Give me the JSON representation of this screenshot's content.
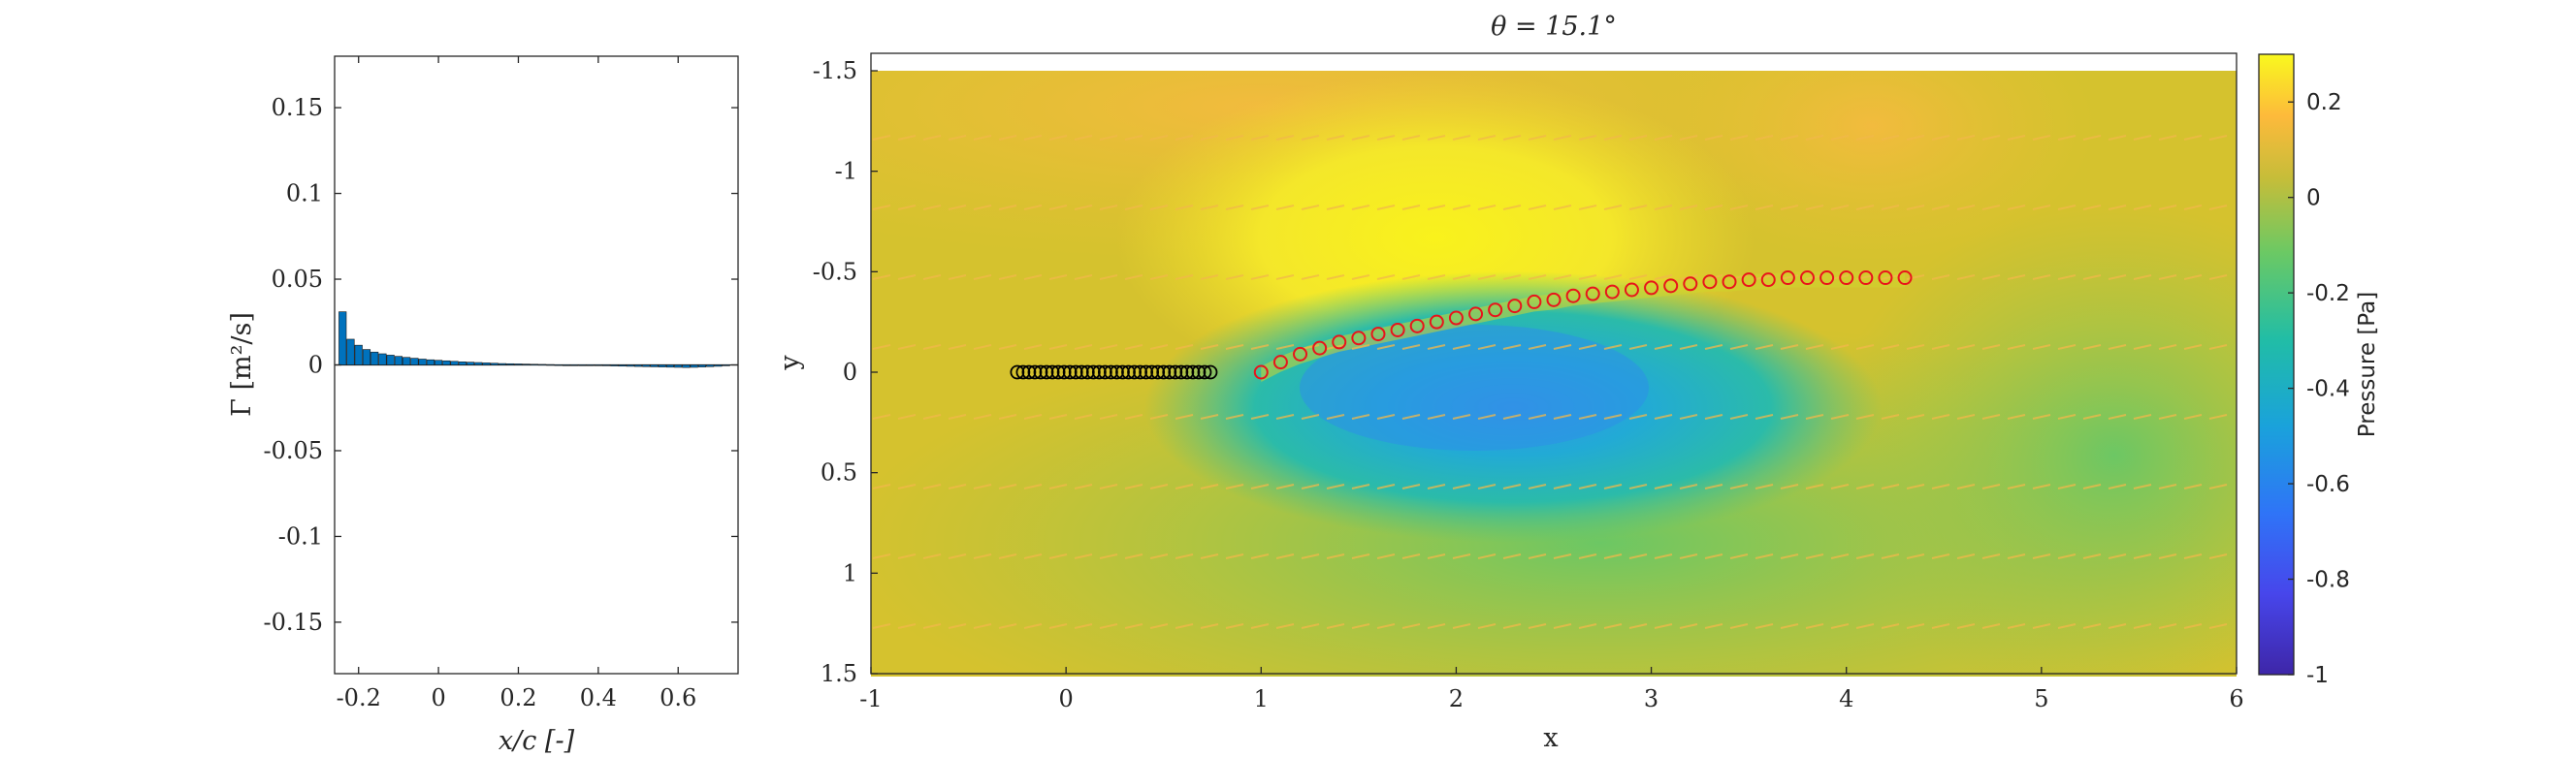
{
  "chart_data": [
    {
      "type": "bar",
      "xlabel": "x/c [-]",
      "ylabel": "Γ [m²/s]",
      "xlim": [
        -0.26,
        0.75
      ],
      "ylim": [
        -0.18,
        0.18
      ],
      "xticks": [
        "-0.2",
        "0",
        "0.2",
        "0.4",
        "0.6"
      ],
      "xtick_values": [
        -0.2,
        0,
        0.2,
        0.4,
        0.6
      ],
      "yticks": [
        "0.15",
        "0.1",
        "0.05",
        "0",
        "-0.05",
        "-0.1",
        "-0.15"
      ],
      "ytick_values": [
        0.15,
        0.1,
        0.05,
        0,
        -0.05,
        -0.1,
        -0.15
      ],
      "bar_color": "#0072BD",
      "x": [
        -0.24,
        -0.22,
        -0.2,
        -0.18,
        -0.16,
        -0.14,
        -0.12,
        -0.1,
        -0.08,
        -0.06,
        -0.04,
        -0.02,
        0.0,
        0.02,
        0.04,
        0.06,
        0.08,
        0.1,
        0.12,
        0.14,
        0.16,
        0.18,
        0.2,
        0.22,
        0.24,
        0.26,
        0.28,
        0.3,
        0.32,
        0.34,
        0.36,
        0.38,
        0.4,
        0.42,
        0.44,
        0.46,
        0.48,
        0.5,
        0.52,
        0.54,
        0.56,
        0.58,
        0.6,
        0.62,
        0.64,
        0.66,
        0.68,
        0.7,
        0.72
      ],
      "values": [
        0.031,
        0.015,
        0.0115,
        0.009,
        0.0075,
        0.0065,
        0.0057,
        0.005,
        0.0044,
        0.0039,
        0.0034,
        0.003,
        0.0027,
        0.0024,
        0.0021,
        0.0018,
        0.0016,
        0.0014,
        0.0012,
        0.001,
        0.0008,
        0.0007,
        0.0006,
        0.0005,
        0.0004,
        0.0003,
        0.0002,
        0.0001,
        0.0,
        -0.0001,
        -0.0002,
        -0.0003,
        -0.0004,
        -0.0005,
        -0.0006,
        -0.0007,
        -0.0008,
        -0.0009,
        -0.001,
        -0.0011,
        -0.0012,
        -0.0013,
        -0.0014,
        -0.0015,
        -0.0014,
        -0.0012,
        -0.001,
        -0.0008,
        -0.0005
      ]
    },
    {
      "type": "heatmap",
      "title": "θ = 15.1°",
      "xlabel": "x",
      "ylabel": "y",
      "xlim": [
        -1,
        6
      ],
      "ylim": [
        -1.5,
        1.5
      ],
      "y_reversed": true,
      "xticks": [
        "-1",
        "0",
        "1",
        "2",
        "3",
        "4",
        "5",
        "6"
      ],
      "xtick_values": [
        -1,
        0,
        1,
        2,
        3,
        4,
        5,
        6
      ],
      "yticks": [
        "-1.5",
        "-1",
        "-0.5",
        "0",
        "0.5",
        "1",
        "1.5"
      ],
      "ytick_values": [
        -1.5,
        -1,
        -0.5,
        0,
        0.5,
        1,
        1.5
      ],
      "colorbar": {
        "label": "Pressure [Pa]",
        "limits": [
          -1,
          0.3
        ],
        "ticks": [
          "0.2",
          "0",
          "-0.2",
          "-0.4",
          "-0.6",
          "-0.8",
          "-1"
        ],
        "tick_values": [
          0.2,
          0,
          -0.2,
          -0.4,
          -0.6,
          -0.8,
          -1
        ],
        "colormap": "parula"
      },
      "body_markers": {
        "color": "#000000",
        "x": [
          -0.25,
          -0.22,
          -0.19,
          -0.16,
          -0.13,
          -0.1,
          -0.07,
          -0.04,
          -0.01,
          0.02,
          0.05,
          0.08,
          0.11,
          0.14,
          0.17,
          0.2,
          0.23,
          0.26,
          0.29,
          0.32,
          0.35,
          0.38,
          0.41,
          0.44,
          0.47,
          0.5,
          0.53,
          0.56,
          0.59,
          0.62,
          0.65,
          0.68,
          0.71,
          0.74
        ],
        "y": [
          0,
          0,
          0,
          0,
          0,
          0,
          0,
          0,
          0,
          0,
          0,
          0,
          0,
          0,
          0,
          0,
          0,
          0,
          0,
          0,
          0,
          0,
          0,
          0,
          0,
          0,
          0,
          0,
          0,
          0,
          0,
          0,
          0,
          0
        ]
      },
      "wake_markers": {
        "color": "#E8141B",
        "x": [
          1.0,
          1.1,
          1.2,
          1.3,
          1.4,
          1.5,
          1.6,
          1.7,
          1.8,
          1.9,
          2.0,
          2.1,
          2.2,
          2.3,
          2.4,
          2.5,
          2.6,
          2.7,
          2.8,
          2.9,
          3.0,
          3.1,
          3.2,
          3.3,
          3.4,
          3.5,
          3.6,
          3.7,
          3.8,
          3.9,
          4.0,
          4.1,
          4.2,
          4.3
        ],
        "y": [
          0.0,
          -0.05,
          -0.09,
          -0.12,
          -0.15,
          -0.17,
          -0.19,
          -0.21,
          -0.23,
          -0.25,
          -0.27,
          -0.29,
          -0.31,
          -0.33,
          -0.35,
          -0.36,
          -0.38,
          -0.39,
          -0.4,
          -0.41,
          -0.42,
          -0.43,
          -0.44,
          -0.45,
          -0.45,
          -0.46,
          -0.46,
          -0.47,
          -0.47,
          -0.47,
          -0.47,
          -0.47,
          -0.47,
          -0.47
        ]
      }
    }
  ]
}
